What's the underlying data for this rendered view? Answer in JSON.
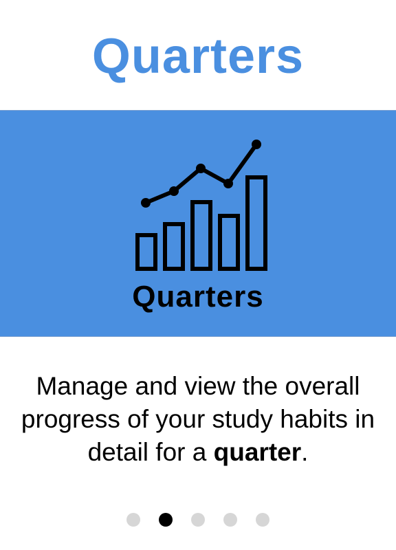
{
  "page": {
    "title": "Quarters",
    "accent_color": "#4a8fe0",
    "banner": {
      "background_color": "#4a8fe0",
      "icon": "bar-line-chart-icon",
      "label": "Quarters"
    },
    "description": {
      "text_before": "Manage and view the overall progress of your study habits in detail for a ",
      "emphasis": "quarter",
      "text_after": "."
    },
    "pagination": {
      "total": 5,
      "active_index": 1
    }
  }
}
